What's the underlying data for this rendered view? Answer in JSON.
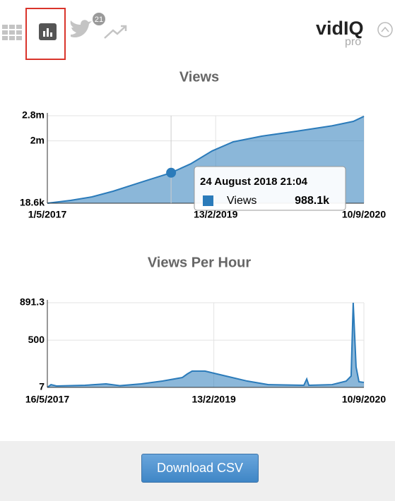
{
  "toolbar": {
    "badge": "21",
    "logo": "vidIQ",
    "logo_sub": "pro"
  },
  "chart_data": [
    {
      "type": "area",
      "title": "Views",
      "x": [
        "2017-05-01",
        "2017-07-30",
        "2017-10-21",
        "2018-01-11",
        "2018-05-01",
        "2018-08-24",
        "2018-11-08",
        "2019-01-30",
        "2019-04-22",
        "2019-08-10",
        "2019-12-25",
        "2020-05-10",
        "2020-07-31",
        "2020-09-10"
      ],
      "series": [
        {
          "name": "Views",
          "color": "#2b7bba",
          "values": [
            18600,
            108000,
            220000,
            400000,
            690000,
            988100,
            1270000,
            1680000,
            1970000,
            2150000,
            2310000,
            2480000,
            2620000,
            2780000
          ]
        }
      ],
      "xlim": [
        "2017-05-01",
        "2020-09-10"
      ],
      "xticks": [
        {
          "value": "2017-05-01",
          "label": "1/5/2017"
        },
        {
          "value": "2019-02-13",
          "label": "13/2/2019"
        },
        {
          "value": "2020-09-10",
          "label": "10/9/2020"
        }
      ],
      "ylim": [
        18600,
        2800000
      ],
      "yticks": [
        {
          "value": 18600,
          "label": "18.6k"
        },
        {
          "value": 2000000,
          "label": "2m"
        },
        {
          "value": 2800000,
          "label": "2.8m"
        }
      ],
      "grid": true,
      "tooltip": {
        "title": "24 August 2018 21:04",
        "value_label": "988.1k"
      }
    },
    {
      "type": "area",
      "title": "Views Per Hour",
      "x": [
        "2017-05-16",
        "2017-05-30",
        "2017-06-20",
        "2017-10-07",
        "2017-12-27",
        "2018-02-19",
        "2018-05-11",
        "2018-07-31",
        "2018-10-15",
        "2018-11-03",
        "2018-11-22",
        "2019-01-10",
        "2019-04-01",
        "2019-06-21",
        "2019-09-10",
        "2020-01-24",
        "2020-02-04",
        "2020-02-12",
        "2020-05-11",
        "2020-07-04",
        "2020-07-23",
        "2020-07-31",
        "2020-08-11",
        "2020-08-22",
        "2020-09-10"
      ],
      "series": [
        {
          "name": "Views Per Hour",
          "color": "#2b7bba",
          "values": [
            7,
            36,
            22,
            29,
            44,
            25,
            44,
            73,
            110,
            147,
            177,
            177,
            125,
            73,
            36,
            29,
            95,
            29,
            36,
            73,
            125,
            891.3,
            221,
            66,
            59
          ]
        }
      ],
      "xlim": [
        "2017-05-16",
        "2020-09-10"
      ],
      "xticks": [
        {
          "value": "2017-05-16",
          "label": "16/5/2017"
        },
        {
          "value": "2019-02-13",
          "label": "13/2/2019"
        },
        {
          "value": "2020-09-10",
          "label": "10/9/2020"
        }
      ],
      "ylim": [
        7,
        891.3
      ],
      "yticks": [
        7,
        500,
        891.3
      ],
      "grid": true
    }
  ],
  "button": {
    "label": "Download CSV"
  }
}
